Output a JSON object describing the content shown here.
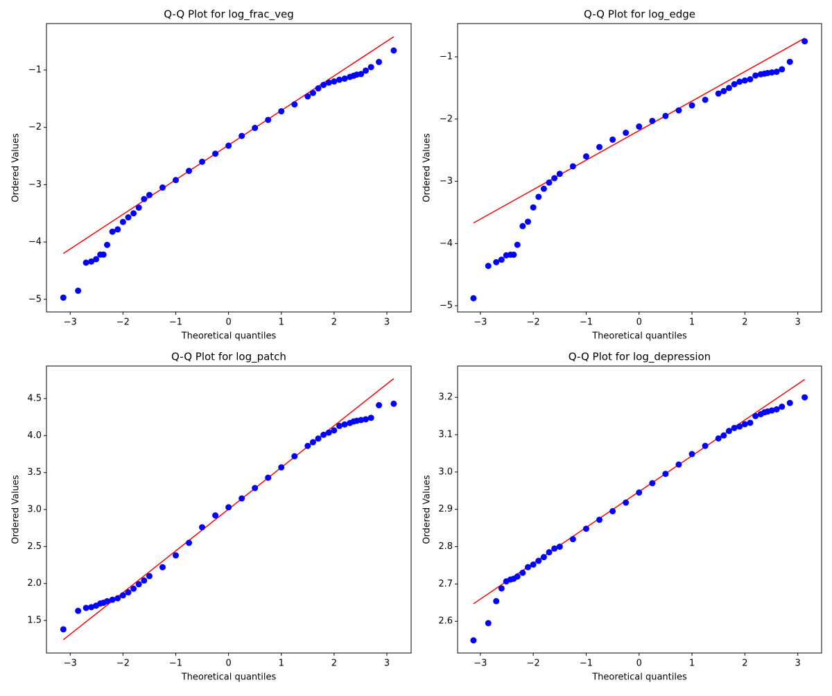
{
  "chart_data": [
    {
      "type": "scatter",
      "title": "Q-Q Plot for log_frac_veg",
      "x_label": "Theoretical quantiles",
      "y_label": "Ordered Values",
      "x": [
        -3.13,
        -2.85,
        -2.7,
        -2.6,
        -2.51,
        -2.43,
        -2.37,
        -2.3,
        -2.2,
        -2.1,
        -2.0,
        -1.9,
        -1.8,
        -1.7,
        -1.6,
        -1.5,
        -1.25,
        -1.0,
        -0.75,
        -0.5,
        -0.25,
        0,
        0.25,
        0.5,
        0.75,
        1.0,
        1.25,
        1.5,
        1.6,
        1.7,
        1.8,
        1.9,
        2.0,
        2.1,
        2.2,
        2.3,
        2.37,
        2.43,
        2.51,
        2.6,
        2.7,
        2.85,
        3.13
      ],
      "values": [
        -4.97,
        -4.85,
        -4.36,
        -4.34,
        -4.3,
        -4.22,
        -4.22,
        -4.05,
        -3.82,
        -3.78,
        -3.65,
        -3.57,
        -3.5,
        -3.4,
        -3.25,
        -3.18,
        -3.05,
        -2.92,
        -2.76,
        -2.6,
        -2.46,
        -2.32,
        -2.15,
        -2.01,
        -1.87,
        -1.72,
        -1.6,
        -1.46,
        -1.4,
        -1.32,
        -1.26,
        -1.22,
        -1.2,
        -1.17,
        -1.15,
        -1.12,
        -1.1,
        -1.08,
        -1.07,
        -1.01,
        -0.95,
        -0.86,
        -0.66
      ],
      "color": "#0000ff",
      "fit_line": {
        "x": [
          -3.13,
          3.13
        ],
        "values": [
          -4.2,
          -0.42
        ],
        "color": "#ff0000"
      },
      "xlim": [
        -3.45,
        3.46
      ],
      "ylim": [
        -5.22,
        -0.19
      ],
      "xticks": [
        {
          "value": -3,
          "label": "−3"
        },
        {
          "value": -2,
          "label": "−2"
        },
        {
          "value": -1,
          "label": "−1"
        },
        0,
        1,
        2,
        3
      ],
      "yticks": [
        {
          "value": -5,
          "label": "−5"
        },
        {
          "value": -4,
          "label": "−4"
        },
        {
          "value": -3,
          "label": "−3"
        },
        {
          "value": -2,
          "label": "−2"
        },
        {
          "value": -1,
          "label": "−1"
        }
      ]
    },
    {
      "type": "scatter",
      "title": "Q-Q Plot for log_edge",
      "x_label": "Theoretical quantiles",
      "y_label": "Ordered Values",
      "x": [
        -3.13,
        -2.85,
        -2.7,
        -2.6,
        -2.51,
        -2.43,
        -2.37,
        -2.3,
        -2.2,
        -2.1,
        -2.0,
        -1.9,
        -1.8,
        -1.7,
        -1.6,
        -1.5,
        -1.25,
        -1.0,
        -0.75,
        -0.5,
        -0.25,
        0,
        0.25,
        0.5,
        0.75,
        1.0,
        1.25,
        1.5,
        1.6,
        1.7,
        1.8,
        1.9,
        2.0,
        2.1,
        2.2,
        2.3,
        2.37,
        2.43,
        2.51,
        2.6,
        2.7,
        2.85,
        3.13
      ],
      "values": [
        -4.88,
        -4.36,
        -4.3,
        -4.26,
        -4.19,
        -4.18,
        -4.18,
        -4.02,
        -3.72,
        -3.65,
        -3.42,
        -3.25,
        -3.12,
        -3.02,
        -2.95,
        -2.88,
        -2.76,
        -2.6,
        -2.45,
        -2.33,
        -2.22,
        -2.12,
        -2.03,
        -1.95,
        -1.86,
        -1.78,
        -1.69,
        -1.59,
        -1.55,
        -1.5,
        -1.44,
        -1.4,
        -1.38,
        -1.36,
        -1.3,
        -1.28,
        -1.27,
        -1.26,
        -1.25,
        -1.24,
        -1.2,
        -1.08,
        -0.75
      ],
      "color": "#0000ff",
      "fit_line": {
        "x": [
          -3.13,
          3.13
        ],
        "values": [
          -3.67,
          -0.7
        ],
        "color": "#ff0000"
      },
      "xlim": [
        -3.43,
        3.45
      ],
      "ylim": [
        -5.1,
        -0.465
      ],
      "xticks": [
        {
          "value": -3,
          "label": "−3"
        },
        {
          "value": -2,
          "label": "−2"
        },
        {
          "value": -1,
          "label": "−1"
        },
        0,
        1,
        2,
        3
      ],
      "yticks": [
        {
          "value": -5,
          "label": "−5"
        },
        {
          "value": -4,
          "label": "−4"
        },
        {
          "value": -3,
          "label": "−3"
        },
        {
          "value": -2,
          "label": "−2"
        },
        {
          "value": -1,
          "label": "−1"
        }
      ]
    },
    {
      "type": "scatter",
      "title": "Q-Q Plot for log_patch",
      "x_label": "Theoretical quantiles",
      "y_label": "Ordered Values",
      "x": [
        -3.13,
        -2.85,
        -2.7,
        -2.6,
        -2.51,
        -2.43,
        -2.37,
        -2.3,
        -2.2,
        -2.1,
        -2.0,
        -1.9,
        -1.8,
        -1.7,
        -1.6,
        -1.5,
        -1.25,
        -1.0,
        -0.75,
        -0.5,
        -0.25,
        0,
        0.25,
        0.5,
        0.75,
        1.0,
        1.25,
        1.5,
        1.6,
        1.7,
        1.8,
        1.9,
        2.0,
        2.1,
        2.2,
        2.3,
        2.37,
        2.43,
        2.51,
        2.6,
        2.7,
        2.85,
        3.13
      ],
      "values": [
        1.38,
        1.63,
        1.67,
        1.68,
        1.7,
        1.73,
        1.74,
        1.76,
        1.78,
        1.8,
        1.84,
        1.88,
        1.93,
        1.99,
        2.04,
        2.1,
        2.22,
        2.38,
        2.55,
        2.76,
        2.92,
        3.03,
        3.15,
        3.29,
        3.43,
        3.57,
        3.72,
        3.86,
        3.91,
        3.96,
        4.01,
        4.04,
        4.07,
        4.13,
        4.15,
        4.17,
        4.19,
        4.2,
        4.21,
        4.22,
        4.24,
        4.41,
        4.43
      ],
      "color": "#0000ff",
      "fit_line": {
        "x": [
          -3.13,
          3.13
        ],
        "values": [
          1.24,
          4.77
        ],
        "color": "#ff0000"
      },
      "xlim": [
        -3.45,
        3.46
      ],
      "ylim": [
        1.06,
        4.94
      ],
      "xticks": [
        {
          "value": -3,
          "label": "−3"
        },
        {
          "value": -2,
          "label": "−2"
        },
        {
          "value": -1,
          "label": "−1"
        },
        0,
        1,
        2,
        3
      ],
      "yticks": [
        1.5,
        {
          "value": 2,
          "label": "2.0"
        },
        2.5,
        {
          "value": 3,
          "label": "3.0"
        },
        3.5,
        {
          "value": 4,
          "label": "4.0"
        },
        4.5
      ]
    },
    {
      "type": "scatter",
      "title": "Q-Q Plot for log_depression",
      "x_label": "Theoretical quantiles",
      "y_label": "Ordered Values",
      "x": [
        -3.13,
        -2.85,
        -2.7,
        -2.6,
        -2.51,
        -2.43,
        -2.37,
        -2.3,
        -2.2,
        -2.1,
        -2.0,
        -1.9,
        -1.8,
        -1.7,
        -1.6,
        -1.5,
        -1.25,
        -1.0,
        -0.75,
        -0.5,
        -0.25,
        0,
        0.25,
        0.5,
        0.75,
        1.0,
        1.25,
        1.5,
        1.6,
        1.7,
        1.8,
        1.9,
        2.0,
        2.1,
        2.2,
        2.3,
        2.37,
        2.43,
        2.51,
        2.6,
        2.7,
        2.85,
        3.13
      ],
      "values": [
        2.549,
        2.595,
        2.654,
        2.688,
        2.707,
        2.712,
        2.714,
        2.72,
        2.73,
        2.745,
        2.752,
        2.762,
        2.772,
        2.785,
        2.795,
        2.8,
        2.82,
        2.848,
        2.872,
        2.895,
        2.918,
        2.945,
        2.97,
        2.995,
        3.02,
        3.048,
        3.07,
        3.09,
        3.098,
        3.11,
        3.118,
        3.122,
        3.128,
        3.132,
        3.15,
        3.155,
        3.16,
        3.162,
        3.165,
        3.168,
        3.175,
        3.185,
        3.2
      ],
      "color": "#0000ff",
      "fit_line": {
        "x": [
          -3.13,
          3.13
        ],
        "values": [
          2.647,
          3.248
        ],
        "color": "#ff0000"
      },
      "xlim": [
        -3.43,
        3.45
      ],
      "ylim": [
        2.515,
        3.284
      ],
      "xticks": [
        {
          "value": -3,
          "label": "−3"
        },
        {
          "value": -2,
          "label": "−2"
        },
        {
          "value": -1,
          "label": "−1"
        },
        0,
        1,
        2,
        3
      ],
      "yticks": [
        2.6,
        2.7,
        2.8,
        2.9,
        {
          "value": 3,
          "label": "3.0"
        },
        3.1,
        3.2
      ]
    }
  ]
}
